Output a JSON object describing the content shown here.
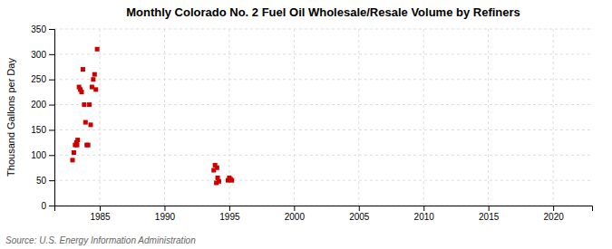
{
  "chart_data": {
    "type": "scatter",
    "title": "Monthly Colorado No. 2 Fuel Oil Wholesale/Resale Volume by Refiners",
    "ylabel": "Thousand Gallons per Day",
    "annotations": [
      "Source: U.S. Energy Information Administration"
    ],
    "xlim": [
      1981.5,
      2023
    ],
    "ylim": [
      0,
      350
    ],
    "xticks": [
      1985,
      1990,
      1995,
      2000,
      2005,
      2010,
      2015,
      2020
    ],
    "yticks": [
      0,
      50,
      100,
      150,
      200,
      250,
      300,
      350
    ],
    "grid": true,
    "marker": "square",
    "series": [
      {
        "color": "#cc0000",
        "x": [
          1982.9,
          1983.0,
          1983.1,
          1983.2,
          1983.25,
          1983.3,
          1983.4,
          1983.5,
          1983.6,
          1983.7,
          1983.8,
          1983.9,
          1984.0,
          1984.1,
          1984.2,
          1984.3,
          1984.4,
          1984.5,
          1984.6,
          1984.7,
          1984.8
        ],
        "values": [
          90,
          105,
          120,
          125,
          120,
          130,
          235,
          230,
          225,
          270,
          200,
          165,
          120,
          120,
          200,
          160,
          235,
          250,
          260,
          230,
          310
        ]
      },
      {
        "color": "#cc0000",
        "x": [
          1993.8,
          1993.9,
          1994.0,
          1994.05,
          1994.1,
          1994.2,
          1994.9,
          1995.0,
          1995.1,
          1995.2
        ],
        "values": [
          70,
          80,
          45,
          75,
          55,
          48,
          50,
          55,
          52,
          50
        ]
      }
    ]
  }
}
